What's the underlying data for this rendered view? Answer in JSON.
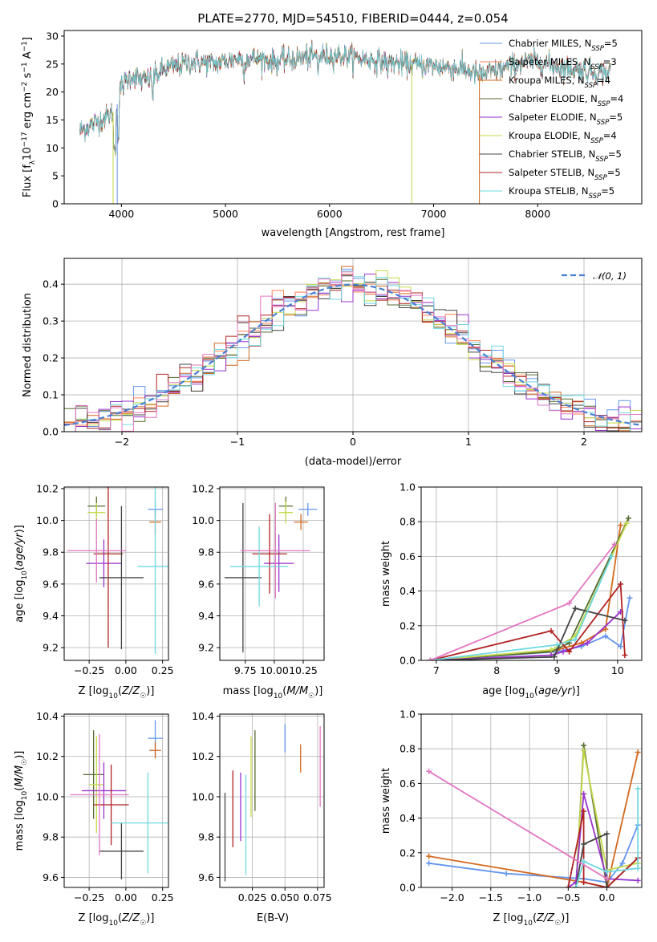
{
  "chart_data": [
    {
      "id": "spectrum",
      "type": "line",
      "title": "PLATE=2770, MJD=54510, FIBERID=0444, z=0.054",
      "xlabel": "wavelength [Angstrom, rest frame]",
      "ylabel": "Flux [fλ10⁻¹⁷ erg cm⁻² s⁻¹ A⁻¹]",
      "xlim": [
        3450,
        9000
      ],
      "ylim": [
        0,
        31
      ],
      "xticks": [
        4000,
        5000,
        6000,
        7000,
        8000
      ],
      "yticks": [
        0,
        5,
        10,
        15,
        20,
        25,
        30
      ],
      "grid": false,
      "legend_position": "top-right",
      "continuum": {
        "x": [
          3600,
          3700,
          3800,
          3900,
          3950,
          4000,
          4100,
          4200,
          4300,
          4400,
          4500,
          4700,
          4900,
          5100,
          5300,
          5500,
          5700,
          5900,
          6100,
          6300,
          6500,
          6700,
          6900,
          7100,
          7300,
          7450,
          7600,
          7800,
          8000,
          8200,
          8400,
          8600,
          8700
        ],
        "y": [
          13,
          14,
          15,
          16,
          17,
          21,
          23,
          22,
          22.5,
          24,
          24.5,
          25.5,
          25,
          26,
          26,
          25.5,
          26,
          26.5,
          26.5,
          26,
          25.5,
          25,
          24.8,
          24.5,
          24,
          23,
          23.8,
          25,
          25.5,
          24.5,
          24,
          23.5,
          23.5
        ]
      },
      "series": [
        {
          "name": "Chabrier MILES, N_SSP=5",
          "color": "#6495ed"
        },
        {
          "name": "Salpeter MILES, N_SSP=3",
          "color": "#ff7f50"
        },
        {
          "name": "Kroupa MILES, N_SSP=4",
          "color": "#d2691e"
        },
        {
          "name": "Chabrier ELODIE, N_SSP=4",
          "color": "#556b2f"
        },
        {
          "name": "Salpeter ELODIE, N_SSP=5",
          "color": "#9932cc"
        },
        {
          "name": "Kroupa ELODIE, N_SSP=4",
          "color": "#c5d94a"
        },
        {
          "name": "Chabrier STELIB, N_SSP=5",
          "color": "#444444"
        },
        {
          "name": "Salpeter STELIB, N_SSP=5",
          "color": "#b22222"
        },
        {
          "name": "Kroupa STELIB, N_SSP=5",
          "color": "#6fd8e0"
        }
      ],
      "legend": [
        {
          "prefix": "Chabrier MILES, N",
          "sub": "SSP",
          "suffix": "=5",
          "color": "#6495ed"
        },
        {
          "prefix": "Salpeter MILES, N",
          "sub": "SSP",
          "suffix": "=3",
          "color": "#ff7f50"
        },
        {
          "prefix": "Kroupa MILES, N",
          "sub": "SSP",
          "suffix": "=4",
          "color": "#d2691e"
        },
        {
          "prefix": "Chabrier ELODIE, N",
          "sub": "SSP",
          "suffix": "=4",
          "color": "#556b2f"
        },
        {
          "prefix": "Salpeter ELODIE, N",
          "sub": "SSP",
          "suffix": "=5",
          "color": "#9932cc"
        },
        {
          "prefix": "Kroupa ELODIE, N",
          "sub": "SSP",
          "suffix": "=4",
          "color": "#c5d94a"
        },
        {
          "prefix": "Chabrier STELIB, N",
          "sub": "SSP",
          "suffix": "=5",
          "color": "#444444"
        },
        {
          "prefix": "Salpeter STELIB, N",
          "sub": "SSP",
          "suffix": "=5",
          "color": "#b22222"
        },
        {
          "prefix": "Kroupa STELIB, N",
          "sub": "SSP",
          "suffix": "=5",
          "color": "#6fd8e0"
        }
      ]
    },
    {
      "id": "residuals",
      "type": "histogram",
      "xlabel": "(data-model)/error",
      "ylabel": "Normed distribution",
      "xlim": [
        -2.5,
        2.5
      ],
      "ylim": [
        0,
        0.47
      ],
      "xticks": [
        -2,
        -1,
        0,
        1,
        2
      ],
      "yticks": [
        0.0,
        0.1,
        0.2,
        0.3,
        0.4
      ],
      "grid": true,
      "legend_position": "top-right",
      "legend_label": "𝒩(0, 1)",
      "normal_curve": {
        "mean": 0,
        "sigma": 1,
        "color": "#4a7fd4"
      },
      "bin_width": 0.1,
      "bin_start": -2.5,
      "series_colors": [
        "#6495ed",
        "#ff7f50",
        "#d2691e",
        "#556b2f",
        "#9932cc",
        "#c5d94a",
        "#444444",
        "#b22222",
        "#6fd8e0",
        "#e377c2"
      ]
    },
    {
      "id": "age-vs-Z",
      "type": "scatter",
      "xlabel": "Z [log10(Z/Z☉)]",
      "ylabel": "age  [log10(age/yr)]",
      "xlim": [
        -0.42,
        0.29
      ],
      "ylim": [
        9.12,
        10.21
      ],
      "xticks": [
        -0.25,
        0.0,
        0.25
      ],
      "yticks": [
        9.2,
        9.4,
        9.6,
        9.8,
        10.0,
        10.2
      ],
      "grid": true,
      "points": [
        {
          "x": 0.2,
          "y": 10.07,
          "xerr": 0.05,
          "yerr": 0.05,
          "color": "#6495ed"
        },
        {
          "x": 0.2,
          "y": 9.99,
          "xerr": 0.04,
          "yerr": 0.08,
          "color": "#d2691e"
        },
        {
          "x": -0.2,
          "y": 10.09,
          "xerr": 0.06,
          "yerr": 0.06,
          "color": "#556b2f"
        },
        {
          "x": -0.2,
          "y": 10.05,
          "xerr": 0.06,
          "yerr": 0.06,
          "color": "#c5d94a"
        },
        {
          "x": -0.15,
          "y": 9.73,
          "xerr": 0.12,
          "yerr": 0.15,
          "color": "#9932cc"
        },
        {
          "x": -0.12,
          "y": 9.79,
          "xerr": 0.1,
          "yerr": 0.59,
          "color": "#b22222"
        },
        {
          "x": -0.03,
          "y": 9.64,
          "xerr": 0.15,
          "yerr": 0.45,
          "color": "#444444"
        },
        {
          "x": 0.2,
          "y": 9.71,
          "xerr": 0.12,
          "yerr": 0.55,
          "color": "#6fd8e0"
        },
        {
          "x": -0.2,
          "y": 9.81,
          "xerr": 0.2,
          "yerr": 0.2,
          "color": "#e377c2"
        }
      ]
    },
    {
      "id": "age-vs-mass",
      "type": "scatter",
      "xlabel": "mass [log10(M/M☉)]",
      "ylabel": "",
      "xlim": [
        9.53,
        10.43
      ],
      "ylim": [
        9.12,
        10.21
      ],
      "xticks": [
        9.75,
        10.0,
        10.25
      ],
      "yticks": [
        9.2,
        9.4,
        9.6,
        9.8,
        10.0,
        10.2
      ],
      "grid": true,
      "points": [
        {
          "x": 10.29,
          "y": 10.07,
          "xerr": 0.08,
          "yerr": 0.04,
          "color": "#6495ed"
        },
        {
          "x": 10.23,
          "y": 9.99,
          "xerr": 0.06,
          "yerr": 0.05,
          "color": "#d2691e"
        },
        {
          "x": 10.1,
          "y": 10.09,
          "xerr": 0.06,
          "yerr": 0.06,
          "color": "#556b2f"
        },
        {
          "x": 10.1,
          "y": 10.05,
          "xerr": 0.06,
          "yerr": 0.07,
          "color": "#c5d94a"
        },
        {
          "x": 10.04,
          "y": 9.73,
          "xerr": 0.13,
          "yerr": 0.18,
          "color": "#9932cc"
        },
        {
          "x": 9.96,
          "y": 9.79,
          "xerr": 0.15,
          "yerr": 0.25,
          "color": "#b22222"
        },
        {
          "x": 9.73,
          "y": 9.64,
          "xerr": 0.16,
          "yerr": 0.47,
          "color": "#444444"
        },
        {
          "x": 9.87,
          "y": 9.71,
          "xerr": 0.25,
          "yerr": 0.25,
          "color": "#6fd8e0"
        },
        {
          "x": 10.01,
          "y": 9.81,
          "xerr": 0.3,
          "yerr": 0.3,
          "color": "#e377c2"
        }
      ]
    },
    {
      "id": "weight-vs-age",
      "type": "line",
      "xlabel": "age  [log10(age/yr)]",
      "ylabel": "mass weight",
      "xlim": [
        6.75,
        10.4
      ],
      "ylim": [
        0,
        1.0
      ],
      "xticks": [
        7,
        8,
        9,
        10
      ],
      "yticks": [
        0.0,
        0.2,
        0.4,
        0.6,
        0.8,
        1.0
      ],
      "grid": true,
      "series": [
        {
          "color": "#6495ed",
          "x": [
            6.9,
            9.0,
            9.4,
            9.8,
            10.05,
            10.2
          ],
          "y": [
            0.0,
            0.05,
            0.08,
            0.14,
            0.08,
            0.36
          ]
        },
        {
          "color": "#d2691e",
          "x": [
            6.9,
            9.0,
            9.4,
            9.8,
            10.05
          ],
          "y": [
            0.0,
            0.06,
            0.1,
            0.18,
            0.78
          ]
        },
        {
          "color": "#556b2f",
          "x": [
            6.9,
            8.9,
            9.2,
            10.18
          ],
          "y": [
            0.0,
            0.05,
            0.1,
            0.82
          ]
        },
        {
          "color": "#c5d94a",
          "x": [
            6.9,
            8.9,
            9.3,
            10.15
          ],
          "y": [
            0.0,
            0.06,
            0.14,
            0.79
          ]
        },
        {
          "color": "#9932cc",
          "x": [
            6.9,
            8.9,
            9.1,
            9.5,
            10.05
          ],
          "y": [
            0.0,
            0.03,
            0.05,
            0.1,
            0.28
          ]
        },
        {
          "color": "#b22222",
          "x": [
            6.9,
            8.9,
            9.2,
            10.05,
            10.12
          ],
          "y": [
            0.0,
            0.17,
            0.05,
            0.44,
            0.03
          ]
        },
        {
          "color": "#444444",
          "x": [
            6.9,
            8.95,
            9.3,
            10.12
          ],
          "y": [
            0.0,
            0.02,
            0.3,
            0.23
          ]
        },
        {
          "color": "#6fd8e0",
          "x": [
            6.9,
            9.0,
            9.3,
            9.9
          ],
          "y": [
            0.0,
            0.09,
            0.12,
            0.6
          ]
        },
        {
          "color": "#e377c2",
          "x": [
            6.9,
            9.2,
            9.95
          ],
          "y": [
            0.0,
            0.33,
            0.67
          ]
        }
      ]
    },
    {
      "id": "mass-vs-Z",
      "type": "scatter",
      "xlabel": "Z [log10(Z/Z☉)]",
      "ylabel": "mass [log10(M/M☉)]",
      "xlim": [
        -0.42,
        0.29
      ],
      "ylim": [
        9.55,
        10.41
      ],
      "xticks": [
        -0.25,
        0.0,
        0.25
      ],
      "yticks": [
        9.6,
        9.8,
        10.0,
        10.2,
        10.4
      ],
      "grid": true,
      "points": [
        {
          "x": 0.2,
          "y": 10.29,
          "xerr": 0.05,
          "yerr": 0.09,
          "color": "#6495ed"
        },
        {
          "x": 0.2,
          "y": 10.23,
          "xerr": 0.04,
          "yerr": 0.04,
          "color": "#d2691e"
        },
        {
          "x": -0.22,
          "y": 10.11,
          "xerr": 0.07,
          "yerr": 0.22,
          "color": "#556b2f"
        },
        {
          "x": -0.2,
          "y": 10.06,
          "xerr": 0.05,
          "yerr": 0.24,
          "color": "#c5d94a"
        },
        {
          "x": -0.15,
          "y": 10.03,
          "xerr": 0.15,
          "yerr": 0.14,
          "color": "#9932cc"
        },
        {
          "x": -0.1,
          "y": 9.96,
          "xerr": 0.12,
          "yerr": 0.2,
          "color": "#b22222"
        },
        {
          "x": -0.03,
          "y": 9.73,
          "xerr": 0.15,
          "yerr": 0.14,
          "color": "#444444"
        },
        {
          "x": 0.15,
          "y": 9.87,
          "xerr": 0.25,
          "yerr": 0.25,
          "color": "#6fd8e0"
        },
        {
          "x": -0.18,
          "y": 10.01,
          "xerr": 0.2,
          "yerr": 0.3,
          "color": "#e377c2"
        }
      ]
    },
    {
      "id": "mass-vs-EBV",
      "type": "scatter",
      "xlabel": "E(B-V)",
      "ylabel": "",
      "xlim": [
        0.0,
        0.08
      ],
      "ylim": [
        9.55,
        10.41
      ],
      "xticks": [
        0.025,
        0.05,
        0.075
      ],
      "yticks": [
        9.6,
        9.8,
        10.0,
        10.2,
        10.4
      ],
      "grid": true,
      "points": [
        {
          "x": 0.05,
          "y": 10.29,
          "yerr": 0.07,
          "color": "#6495ed"
        },
        {
          "x": 0.062,
          "y": 10.19,
          "yerr": 0.07,
          "color": "#d2691e"
        },
        {
          "x": 0.027,
          "y": 10.13,
          "yerr": 0.2,
          "color": "#556b2f"
        },
        {
          "x": 0.024,
          "y": 10.1,
          "yerr": 0.2,
          "color": "#c5d94a"
        },
        {
          "x": 0.016,
          "y": 9.95,
          "yerr": 0.17,
          "color": "#9932cc"
        },
        {
          "x": 0.01,
          "y": 9.94,
          "yerr": 0.19,
          "color": "#b22222"
        },
        {
          "x": 0.004,
          "y": 9.8,
          "yerr": 0.22,
          "color": "#444444"
        },
        {
          "x": 0.02,
          "y": 9.86,
          "yerr": 0.25,
          "color": "#6fd8e0"
        },
        {
          "x": 0.077,
          "y": 10.15,
          "yerr": 0.2,
          "color": "#e377c2"
        }
      ]
    },
    {
      "id": "weight-vs-Z",
      "type": "line",
      "xlabel": "Z [log10(Z/Z☉)]",
      "ylabel": "mass weight",
      "xlim": [
        -2.4,
        0.45
      ],
      "ylim": [
        0,
        1.0
      ],
      "xticks": [
        -2.0,
        -1.5,
        -1.0,
        -0.5,
        0.0
      ],
      "yticks": [
        0.0,
        0.2,
        0.4,
        0.6,
        0.8,
        1.0
      ],
      "grid": true,
      "series": [
        {
          "color": "#6495ed",
          "x": [
            -2.3,
            -1.3,
            -0.3,
            0.0,
            0.2,
            0.4,
            0.4
          ],
          "y": [
            0.14,
            0.08,
            0.05,
            0.03,
            0.14,
            0.36,
            0.36
          ]
        },
        {
          "color": "#d2691e",
          "x": [
            -2.3,
            -0.3,
            0.0,
            0.4
          ],
          "y": [
            0.18,
            0.03,
            0.0,
            0.78
          ]
        },
        {
          "color": "#556b2f",
          "x": [
            -0.4,
            -0.3,
            0.0,
            0.4
          ],
          "y": [
            0.0,
            0.82,
            0.0,
            0.17
          ]
        },
        {
          "color": "#c5d94a",
          "x": [
            -0.4,
            -0.3,
            0.0,
            0.4
          ],
          "y": [
            0.0,
            0.79,
            0.1,
            0.14
          ]
        },
        {
          "color": "#9932cc",
          "x": [
            -0.5,
            -0.4,
            -0.3,
            0.0,
            0.4
          ],
          "y": [
            0.0,
            0.03,
            0.54,
            0.05,
            0.04
          ]
        },
        {
          "color": "#b22222",
          "x": [
            -0.5,
            -0.3,
            -0.3,
            0.0,
            0.4
          ],
          "y": [
            0.0,
            0.44,
            0.03,
            0.0,
            0.17
          ]
        },
        {
          "color": "#444444",
          "x": [
            -0.4,
            -0.3,
            0.0,
            0.0
          ],
          "y": [
            0.0,
            0.25,
            0.31,
            0.0
          ]
        },
        {
          "color": "#6fd8e0",
          "x": [
            -0.4,
            -0.3,
            0.0,
            0.4,
            0.4
          ],
          "y": [
            0.0,
            0.15,
            0.09,
            0.11,
            0.57
          ]
        },
        {
          "color": "#e377c2",
          "x": [
            -2.3,
            0.0
          ],
          "y": [
            0.67,
            0.05
          ]
        }
      ]
    }
  ]
}
